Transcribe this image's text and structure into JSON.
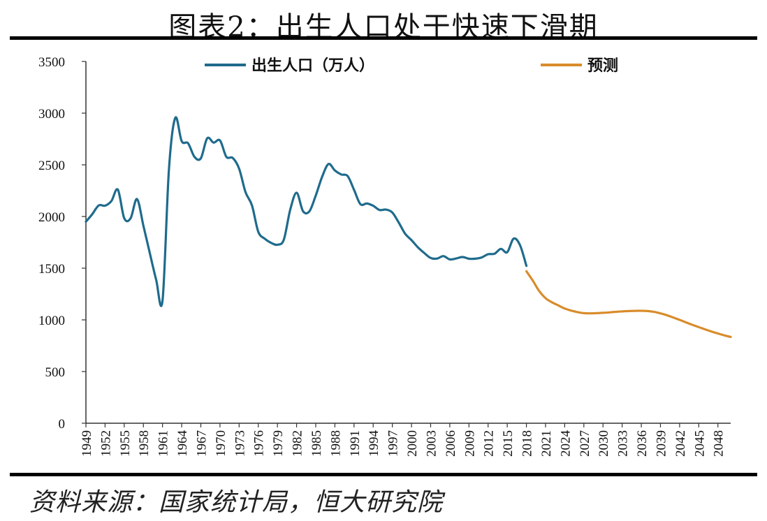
{
  "title": "图表2：出生人口处于快速下滑期",
  "source": "资料来源：国家统计局，恒大研究院",
  "colors": {
    "actual": "#1f6b8c",
    "forecast": "#d98c2b"
  },
  "chart_data": {
    "type": "line",
    "title": "图表2：出生人口处于快速下滑期",
    "ylim": [
      0,
      3500
    ],
    "y_ticks": [
      0,
      500,
      1000,
      1500,
      2000,
      2500,
      3000,
      3500
    ],
    "xlim": [
      1949,
      2050
    ],
    "x_tick_labels": [
      "1949",
      "1952",
      "1955",
      "1958",
      "1961",
      "1964",
      "1967",
      "1970",
      "1973",
      "1976",
      "1979",
      "1982",
      "1985",
      "1988",
      "1991",
      "1994",
      "1997",
      "2000",
      "2003",
      "2006",
      "2009",
      "2012",
      "2015",
      "2018",
      "2021",
      "2024",
      "2027",
      "2030",
      "2033",
      "2036",
      "2039",
      "2042",
      "2045",
      "2048"
    ],
    "legend_position": "top",
    "grid": false,
    "series": [
      {
        "name": "出生人口（万人）",
        "color": "#1f6b8c",
        "x": [
          1949,
          1950,
          1951,
          1952,
          1953,
          1954,
          1955,
          1956,
          1957,
          1958,
          1959,
          1960,
          1961,
          1962,
          1963,
          1964,
          1965,
          1966,
          1967,
          1968,
          1969,
          1970,
          1971,
          1972,
          1973,
          1974,
          1975,
          1976,
          1977,
          1978,
          1979,
          1980,
          1981,
          1982,
          1983,
          1984,
          1985,
          1986,
          1987,
          1988,
          1989,
          1990,
          1991,
          1992,
          1993,
          1994,
          1995,
          1996,
          1997,
          1998,
          1999,
          2000,
          2001,
          2002,
          2003,
          2004,
          2005,
          2006,
          2007,
          2008,
          2009,
          2010,
          2011,
          2012,
          2013,
          2014,
          2015,
          2016,
          2017,
          2018
        ],
        "values": [
          1950,
          2023,
          2107,
          2105,
          2151,
          2260,
          1984,
          1983,
          2169,
          1913,
          1648,
          1389,
          1189,
          2451,
          2954,
          2729,
          2709,
          2577,
          2563,
          2757,
          2715,
          2736,
          2578,
          2566,
          2463,
          2235,
          2109,
          1853,
          1786,
          1745,
          1727,
          1776,
          2064,
          2230,
          2052,
          2050,
          2202,
          2384,
          2508,
          2445,
          2407,
          2391,
          2258,
          2119,
          2126,
          2104,
          2063,
          2067,
          2038,
          1942,
          1834,
          1771,
          1702,
          1647,
          1599,
          1593,
          1617,
          1585,
          1594,
          1608,
          1591,
          1592,
          1604,
          1635,
          1640,
          1687,
          1655,
          1786,
          1723,
          1523
        ]
      },
      {
        "name": "预测",
        "color": "#d98c2b",
        "x": [
          2018,
          2019,
          2020,
          2021,
          2022,
          2023,
          2024,
          2025,
          2026,
          2027,
          2028,
          2029,
          2030,
          2031,
          2032,
          2033,
          2034,
          2035,
          2036,
          2037,
          2038,
          2039,
          2040,
          2041,
          2042,
          2043,
          2044,
          2045,
          2046,
          2047,
          2048,
          2049,
          2050
        ],
        "values": [
          1470,
          1380,
          1280,
          1210,
          1170,
          1140,
          1110,
          1090,
          1075,
          1065,
          1063,
          1065,
          1068,
          1072,
          1078,
          1082,
          1085,
          1087,
          1088,
          1085,
          1077,
          1063,
          1045,
          1023,
          1000,
          976,
          952,
          930,
          908,
          887,
          868,
          850,
          835
        ]
      }
    ]
  }
}
